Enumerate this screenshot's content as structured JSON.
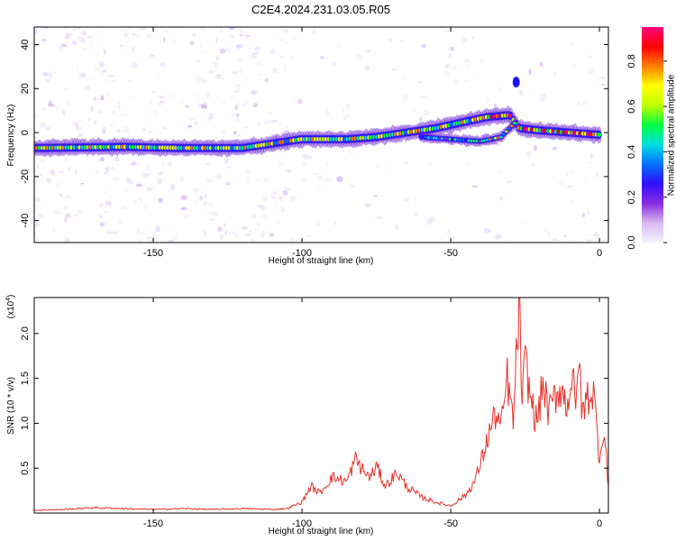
{
  "figure": {
    "title": "C2E4.2024.231.03.05.R05"
  },
  "chart_data": [
    {
      "type": "heatmap",
      "name": "spectrogram",
      "title": "C2E4.2024.231.03.05.R05",
      "xlabel": "Height of straight line (km)",
      "ylabel": "Frequency (Hz)",
      "xlim": [
        -190,
        3
      ],
      "ylim": [
        -50,
        48
      ],
      "xticks": [
        -150,
        -100,
        -50,
        0
      ],
      "xtick_labels": [
        "-150",
        "-100",
        "-50",
        "0"
      ],
      "yticks": [
        -40,
        -20,
        0,
        20,
        40
      ],
      "ytick_labels": [
        "-40",
        "-20",
        "0",
        "20",
        "40"
      ],
      "colorbar": {
        "label": "Normalized spectral amplitude",
        "range": [
          0,
          0.95
        ],
        "ticks": [
          0.0,
          0.2,
          0.4,
          0.6,
          0.8
        ],
        "tick_labels": [
          "0.0",
          "0.2",
          "0.4",
          "0.6",
          "0.8"
        ],
        "colors": [
          "#f4f4ff",
          "#d9b8f0",
          "#8a2be2",
          "#3010ff",
          "#0070ff",
          "#00e0e0",
          "#00ff40",
          "#c0ff00",
          "#ffff00",
          "#ff8000",
          "#ff0000",
          "#ff0080"
        ]
      },
      "ridge": {
        "points": [
          [
            -190,
            -7
          ],
          [
            -160,
            -6.5
          ],
          [
            -140,
            -7
          ],
          [
            -120,
            -7
          ],
          [
            -110,
            -5
          ],
          [
            -100,
            -3
          ],
          [
            -85,
            -3
          ],
          [
            -75,
            -2
          ],
          [
            -65,
            0
          ],
          [
            -55,
            2
          ],
          [
            -45,
            5
          ],
          [
            -38,
            7
          ],
          [
            -30,
            8
          ],
          [
            -27,
            2
          ],
          [
            -20,
            1
          ],
          [
            -10,
            0
          ],
          [
            0,
            -1
          ]
        ],
        "secondary_points": [
          [
            -60,
            -2
          ],
          [
            -50,
            -3
          ],
          [
            -40,
            -4
          ],
          [
            -33,
            -2
          ],
          [
            -28,
            5
          ]
        ],
        "peak_spots": [
          [
            -28,
            23
          ]
        ]
      }
    },
    {
      "type": "line",
      "name": "snr",
      "xlabel": "Height of straight line (km)",
      "ylabel": "SNR (10 * v/v)",
      "y_scale_label": "(x10",
      "y_scale_exponent": "4",
      "xlim": [
        -190,
        3
      ],
      "ylim": [
        0,
        2.4
      ],
      "xticks": [
        -150,
        -100,
        -50,
        0
      ],
      "xtick_labels": [
        "-150",
        "-100",
        "-50",
        "0"
      ],
      "yticks": [
        0.5,
        1.0,
        1.5,
        2.0
      ],
      "ytick_labels": [
        "0.5",
        "1.0",
        "1.5",
        "2.0"
      ],
      "series": [
        {
          "color": "#e8302a",
          "x": [
            -190,
            -180,
            -170,
            -160,
            -150,
            -140,
            -130,
            -120,
            -110,
            -105,
            -100,
            -97,
            -94,
            -90,
            -85,
            -82,
            -79,
            -77,
            -75,
            -72,
            -68,
            -65,
            -60,
            -55,
            -50,
            -45,
            -42,
            -40,
            -37,
            -35,
            -33,
            -31,
            -29,
            -27,
            -26,
            -25,
            -23,
            -21,
            -19,
            -17,
            -15,
            -13,
            -11,
            -9,
            -8,
            -7,
            -6,
            -4,
            -2,
            0,
            1,
            2,
            3
          ],
          "y": [
            0.03,
            0.04,
            0.06,
            0.05,
            0.04,
            0.05,
            0.04,
            0.05,
            0.04,
            0.05,
            0.12,
            0.3,
            0.22,
            0.4,
            0.35,
            0.6,
            0.45,
            0.4,
            0.52,
            0.3,
            0.45,
            0.3,
            0.18,
            0.12,
            0.08,
            0.2,
            0.35,
            0.55,
            0.9,
            1.1,
            0.95,
            1.5,
            1.0,
            2.35,
            1.2,
            1.7,
            1.25,
            1.0,
            1.45,
            1.1,
            1.3,
            1.4,
            1.2,
            1.55,
            1.05,
            1.88,
            1.1,
            1.3,
            1.35,
            0.6,
            0.9,
            0.75,
            0.3
          ]
        }
      ]
    }
  ]
}
